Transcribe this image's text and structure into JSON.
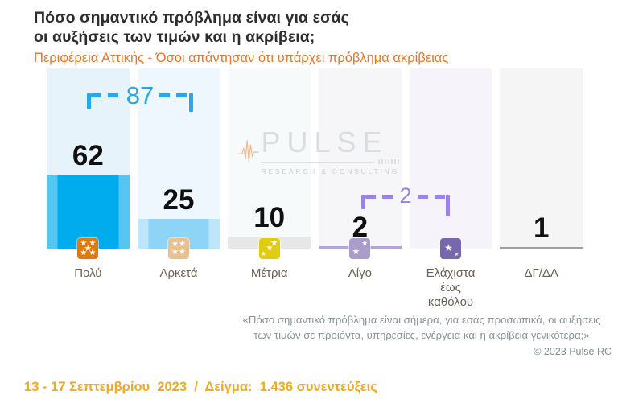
{
  "title": {
    "line1": "Πόσο σημαντικό πρόβλημα είναι για εσάς",
    "line2": "οι αυξήσεις των τιμών και η ακρίβεια;"
  },
  "subtitle": "Περιφέρεια Αττικής - Όσοι απάντησαν ότι υπάρχει πρόβλημα ακρίβειας",
  "chart_data": {
    "type": "bar",
    "title": "Πόσο σημαντικό πρόβλημα είναι για εσάς οι αυξήσεις των τιμών και η ακρίβεια;",
    "categories": [
      "Πολύ",
      "Αρκετά",
      "Μέτρια",
      "Λίγο",
      "Ελάχιστα έως καθόλου",
      "ΔΓ/ΔΑ"
    ],
    "values": [
      62,
      25,
      10,
      2,
      0,
      1
    ],
    "ylim": [
      0,
      100
    ],
    "grid": false,
    "annotations": [
      {
        "label": "87",
        "from": "Πολύ",
        "to": "Αρκετά",
        "color": "#2aa7eb"
      },
      {
        "label": "2",
        "from": "Λίγο",
        "to": "Ελάχιστα έως καθόλου",
        "color": "#9b83ea"
      }
    ],
    "columns": [
      {
        "label": "Πολύ",
        "value": 62,
        "show_value": true,
        "bar_color": "#00acee",
        "bar_edge": "#55c5f2",
        "bg": "#e7f3fb",
        "icon": {
          "name": "stars-5-badge",
          "color": "#e0790f",
          "stars": 5
        }
      },
      {
        "label": "Αρκετά",
        "value": 25,
        "show_value": true,
        "bar_color": "#8ed4f7",
        "bar_edge": "#bee6fb",
        "bg": "#eef7fd",
        "icon": {
          "name": "stars-4-badge",
          "color": "#e7c192",
          "stars": 4
        }
      },
      {
        "label": "Μέτρια",
        "value": 10,
        "show_value": true,
        "bar_color": "#e7e7e7",
        "bar_edge": null,
        "bg": "#f7fafb",
        "icon": {
          "name": "stars-3-badge",
          "color": "#e2cc10",
          "stars": 3
        }
      },
      {
        "label": "Λίγο",
        "value": 2,
        "show_value": true,
        "bar_color": "#b5a4d8",
        "bar_edge": null,
        "bg": "#f6f6f9",
        "icon": {
          "name": "stars-2-badge",
          "color": "#ab9dcb",
          "stars": 2
        }
      },
      {
        "label": "Ελάχιστα έως καθόλου",
        "value": 0,
        "show_value": false,
        "bar_color": "#b5a4d8",
        "bar_edge": null,
        "bg": "#f7f3fb",
        "icon": {
          "name": "star-1-badge",
          "color": "#7767af",
          "stars": 1
        }
      },
      {
        "label": "ΔΓ/ΔΑ",
        "value": 1,
        "show_value": true,
        "bar_color": "#a0a0a0",
        "bar_edge": null,
        "bg": "#f5f5f5",
        "icon": null
      }
    ]
  },
  "watermark": {
    "name": "PULSE",
    "tagline": "RESEARCH & CONSULTING"
  },
  "footnote": {
    "line1": "«Πόσο σημαντικό πρόβλημα είναι σήμερα, για εσάς προσωπικά, οι αυξήσεις",
    "line2": "των τιμών σε προϊόντα, υπηρεσίες, ενέργεια και η ακρίβεια γενικότερα;»"
  },
  "copyright": "© 2023 Pulse RC",
  "fieldwork": "13 - 17 Σεπτεμβρίου  2023  /  Δείγμα:  1.436 συνεντεύξεις"
}
